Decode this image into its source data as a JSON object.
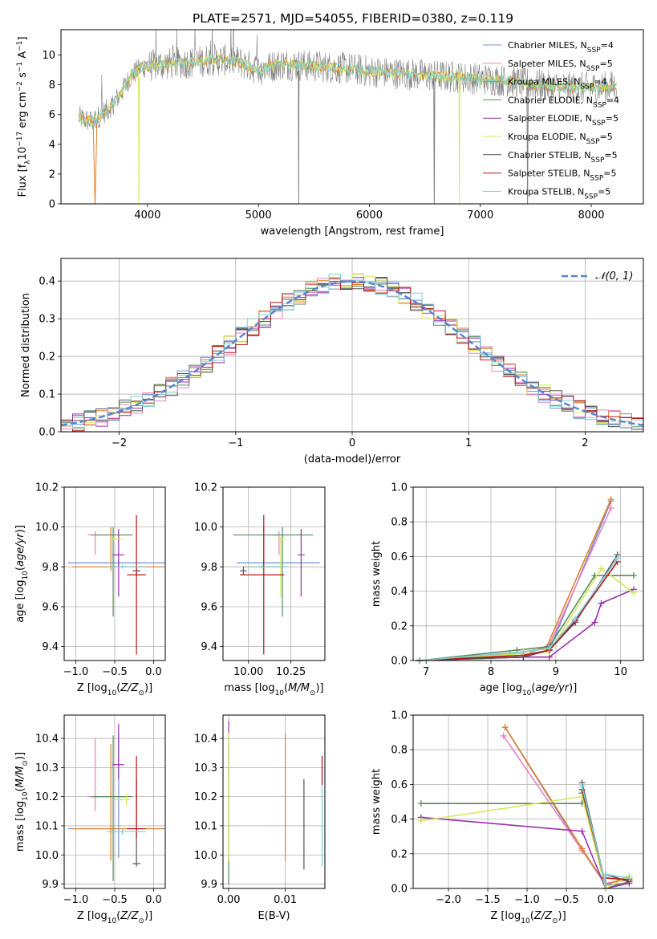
{
  "figure_title": "PLATE=2571, MJD=54055, FIBERID=0380, z=0.119",
  "colors": {
    "series": [
      "#6f8fd8",
      "#e882c2",
      "#e0802a",
      "#5a8a5a",
      "#9a2fb0",
      "#d6e85a",
      "#555555",
      "#b81414",
      "#7ad0d8"
    ],
    "data": "#808080",
    "normal": "#5b84d6",
    "grid": "#b0b0b0"
  },
  "chart_data": [
    {
      "id": "spectrum",
      "type": "line",
      "xlabel": "wavelength [Angstrom, rest frame]",
      "ylabel": "Flux [f_λ10^-17 erg cm^-2 s^-1 A^-1]",
      "xlim": [
        3220,
        8470
      ],
      "ylim": [
        0,
        11.7
      ],
      "xticks": [
        4000,
        5000,
        6000,
        7000,
        8000
      ],
      "yticks": [
        0,
        2,
        4,
        6,
        8,
        10
      ],
      "grid": false,
      "legend_position": "top-right",
      "legend": [
        {
          "name": "Chabrier MILES",
          "nssp": "4"
        },
        {
          "name": "Salpeter MILES",
          "nssp": "5"
        },
        {
          "name": "Kroupa MILES",
          "nssp": "4"
        },
        {
          "name": "Chabrier ELODIE",
          "nssp": "4"
        },
        {
          "name": "Salpeter ELODIE",
          "nssp": "5"
        },
        {
          "name": "Kroupa ELODIE",
          "nssp": "5"
        },
        {
          "name": "Chabrier STELIB",
          "nssp": "5"
        },
        {
          "name": "Salpeter STELIB",
          "nssp": "5"
        },
        {
          "name": "Kroupa STELIB",
          "nssp": "5"
        }
      ],
      "model_continuum": {
        "x": [
          3380,
          3500,
          3650,
          3750,
          3850,
          3950,
          4050,
          4200,
          4400,
          4600,
          4800,
          5000,
          5200,
          5400,
          5600,
          5800,
          6000,
          6200,
          6400,
          6600,
          6800,
          7000,
          7200,
          7400,
          7600,
          7800,
          8000,
          8230
        ],
        "y": [
          5.8,
          5.5,
          6.4,
          7.3,
          8.6,
          9.2,
          9.3,
          9.4,
          9.5,
          9.7,
          9.6,
          9.0,
          9.4,
          9.3,
          9.2,
          9.1,
          8.9,
          8.8,
          8.7,
          8.6,
          8.5,
          8.4,
          8.3,
          8.1,
          7.9,
          7.8,
          7.8,
          7.9
        ]
      }
    },
    {
      "id": "residuals",
      "type": "line",
      "xlabel": "(data-model)/error",
      "ylabel": "Normed distribution",
      "xlim": [
        -2.5,
        2.5
      ],
      "ylim": [
        0,
        0.46
      ],
      "xticks": [
        -2,
        -1,
        0,
        1,
        2
      ],
      "yticks": [
        0.0,
        0.1,
        0.2,
        0.3,
        0.4
      ],
      "grid": true,
      "legend_position": "top-right",
      "normal_label": "N(0,1)",
      "normal": {
        "mean": 0,
        "sigma": 1
      }
    },
    {
      "id": "age-vs-Z",
      "type": "scatter",
      "xlabel": "Z [log10(Z/Z⊙)]",
      "ylabel": "age [log10(age/yr)]",
      "xlim": [
        -1.15,
        0.15
      ],
      "ylim": [
        9.33,
        10.2
      ],
      "xticks": [
        -1.0,
        -0.5,
        0.0
      ],
      "yticks": [
        9.4,
        9.6,
        9.8,
        10.0,
        10.2
      ],
      "grid": true,
      "points": [
        {
          "x": -0.45,
          "xerr": [
            0.65,
            0.68
          ],
          "y": 9.82,
          "yerr": [
            0.02,
            0.02
          ]
        },
        {
          "x": -0.75,
          "xerr": [
            0.1,
            0.4
          ],
          "y": 9.96,
          "yerr": [
            0.1,
            0.02
          ]
        },
        {
          "x": -0.55,
          "xerr": [
            0.5,
            0.68
          ],
          "y": 9.8,
          "yerr": [
            0.02,
            0.2
          ]
        },
        {
          "x": -0.52,
          "xerr": [
            0.28,
            0.25
          ],
          "y": 9.96,
          "yerr": [
            0.41,
            0.04
          ]
        },
        {
          "x": -0.45,
          "xerr": [
            0.08,
            0.07
          ],
          "y": 9.86,
          "yerr": [
            0.21,
            0.13
          ]
        },
        {
          "x": -0.5,
          "xerr": [
            0.06,
            0.1
          ],
          "y": 9.94,
          "yerr": [
            0.01,
            0.01
          ]
        },
        {
          "x": -0.22,
          "xerr": [
            0.05,
            0.05
          ],
          "y": 9.78,
          "yerr": [
            0.02,
            0.02
          ]
        },
        {
          "x": -0.22,
          "xerr": [
            0.12,
            0.12
          ],
          "y": 9.76,
          "yerr": [
            0.4,
            0.3
          ]
        },
        {
          "x": -0.4,
          "xerr": [
            0.2,
            0.3
          ],
          "y": 9.8,
          "yerr": [
            0.01,
            0.01
          ]
        }
      ]
    },
    {
      "id": "age-vs-mass",
      "type": "scatter",
      "xlabel": "mass [log10(M/M⊙)]",
      "ylabel": "",
      "xlim": [
        9.85,
        10.45
      ],
      "ylim": [
        9.33,
        10.2
      ],
      "xticks": [
        10.0,
        10.25
      ],
      "yticks": [
        9.4,
        9.6,
        9.8,
        10.0,
        10.2
      ],
      "grid": true,
      "points": [
        {
          "x": 10.09,
          "xerr": [
            0.16,
            0.33
          ],
          "y": 9.82,
          "yerr": [
            0.02,
            0.02
          ]
        },
        {
          "x": 10.18,
          "xerr": [
            0.03,
            0.03
          ],
          "y": 9.96,
          "yerr": [
            0.1,
            0.02
          ]
        },
        {
          "x": 10.09,
          "xerr": [
            0.12,
            0.12
          ],
          "y": 9.8,
          "yerr": [
            0.02,
            0.2
          ]
        },
        {
          "x": 10.2,
          "xerr": [
            0.29,
            0.18
          ],
          "y": 9.96,
          "yerr": [
            0.41,
            0.04
          ]
        },
        {
          "x": 10.31,
          "xerr": [
            0.02,
            0.02
          ],
          "y": 9.86,
          "yerr": [
            0.21,
            0.13
          ]
        },
        {
          "x": 10.19,
          "xerr": [
            0.02,
            0.02
          ],
          "y": 9.94,
          "yerr": [
            0.29,
            0.01
          ]
        },
        {
          "x": 9.97,
          "xerr": [
            0.02,
            0.02
          ],
          "y": 9.78,
          "yerr": [
            0.02,
            0.02
          ]
        },
        {
          "x": 10.09,
          "xerr": [
            0.14,
            0.12
          ],
          "y": 9.76,
          "yerr": [
            0.4,
            0.3
          ]
        },
        {
          "x": 10.08,
          "xerr": [
            0.1,
            0.15
          ],
          "y": 9.8,
          "yerr": [
            0.01,
            0.01
          ]
        }
      ]
    },
    {
      "id": "mass-weight-vs-age",
      "type": "line",
      "xlabel": "age [log10(age/yr)]",
      "ylabel": "mass weight",
      "xlim": [
        6.8,
        10.35
      ],
      "ylim": [
        0,
        1.0
      ],
      "xticks": [
        7,
        8,
        9,
        10
      ],
      "yticks": [
        0.0,
        0.2,
        0.4,
        0.6,
        0.8,
        1.0
      ],
      "grid": true,
      "series": [
        {
          "x": [
            6.9,
            8.5,
            8.9,
            9.85
          ],
          "y": [
            0.0,
            0.02,
            0.06,
            0.92
          ]
        },
        {
          "x": [
            6.9,
            8.5,
            8.9,
            9.85
          ],
          "y": [
            0.0,
            0.03,
            0.09,
            0.88
          ]
        },
        {
          "x": [
            6.9,
            8.3,
            8.85,
            9.85
          ],
          "y": [
            0.0,
            0.04,
            0.07,
            0.93
          ]
        },
        {
          "x": [
            6.9,
            8.4,
            8.9,
            9.6,
            10.2
          ],
          "y": [
            0.0,
            0.06,
            0.08,
            0.49,
            0.49
          ]
        },
        {
          "x": [
            6.9,
            8.5,
            8.9,
            9.6,
            9.7,
            10.2
          ],
          "y": [
            0.0,
            0.02,
            0.02,
            0.22,
            0.33,
            0.41
          ]
        },
        {
          "x": [
            6.9,
            8.5,
            8.9,
            9.7,
            10.2
          ],
          "y": [
            0.0,
            0.04,
            0.05,
            0.53,
            0.39
          ]
        },
        {
          "x": [
            6.9,
            8.5,
            8.9,
            9.3,
            9.95
          ],
          "y": [
            0.0,
            0.02,
            0.06,
            0.22,
            0.61
          ]
        },
        {
          "x": [
            6.9,
            8.5,
            8.9,
            9.3,
            9.95
          ],
          "y": [
            0.0,
            0.03,
            0.06,
            0.23,
            0.57
          ]
        },
        {
          "x": [
            6.9,
            8.5,
            8.9,
            9.3,
            9.95
          ],
          "y": [
            0.0,
            0.05,
            0.07,
            0.24,
            0.59
          ]
        }
      ]
    },
    {
      "id": "mass-vs-Z",
      "type": "scatter",
      "xlabel": "Z [log10(Z/Z⊙)]",
      "ylabel": "mass [log10(M/M⊙)]",
      "xlim": [
        -1.15,
        0.15
      ],
      "ylim": [
        9.885,
        10.48
      ],
      "xticks": [
        -1.0,
        -0.5,
        0.0
      ],
      "yticks": [
        9.9,
        10.0,
        10.1,
        10.2,
        10.3,
        10.4
      ],
      "grid": true,
      "points": [
        {
          "x": -0.45,
          "xerr": [
            0.65,
            0.68
          ],
          "y": 10.09,
          "yerr": [
            0.1,
            0.33
          ]
        },
        {
          "x": -0.75,
          "xerr": [
            0.1,
            0.4
          ],
          "y": 10.2,
          "yerr": [
            0.05,
            0.2
          ]
        },
        {
          "x": -0.55,
          "xerr": [
            0.5,
            0.68
          ],
          "y": 10.09,
          "yerr": [
            0.11,
            0.29
          ]
        },
        {
          "x": -0.52,
          "xerr": [
            0.28,
            0.25
          ],
          "y": 10.2,
          "yerr": [
            0.29,
            0.21
          ]
        },
        {
          "x": -0.45,
          "xerr": [
            0.08,
            0.07
          ],
          "y": 10.31,
          "yerr": [
            0.05,
            0.14
          ]
        },
        {
          "x": -0.35,
          "xerr": [
            0.16,
            0.06
          ],
          "y": 10.19,
          "yerr": [
            0.02,
            0.02
          ]
        },
        {
          "x": -0.22,
          "xerr": [
            0.05,
            0.05
          ],
          "y": 9.97,
          "yerr": [
            0.01,
            0.29
          ]
        },
        {
          "x": -0.22,
          "xerr": [
            0.12,
            0.12
          ],
          "y": 10.09,
          "yerr": [
            0.03,
            0.25
          ]
        },
        {
          "x": -0.4,
          "xerr": [
            0.2,
            0.3
          ],
          "y": 10.08,
          "yerr": [
            0.01,
            0.01
          ]
        }
      ]
    },
    {
      "id": "mass-vs-EBV",
      "type": "scatter",
      "xlabel": "E(B-V)",
      "ylabel": "",
      "xlim": [
        -0.001,
        0.017
      ],
      "ylim": [
        9.885,
        10.48
      ],
      "xticks": [
        0.0,
        0.01
      ],
      "yticks": [
        9.9,
        10.0,
        10.1,
        10.2,
        10.3,
        10.4
      ],
      "grid": true,
      "points": [
        {
          "x": 0.0,
          "y": 10.2,
          "yerr": [
            0.22,
            0.22
          ]
        },
        {
          "x": 0.0,
          "y": 10.2,
          "yerr": [
            0.2,
            0.2
          ]
        },
        {
          "x": 0.01,
          "y": 10.2,
          "yerr": [
            0.22,
            0.22
          ]
        },
        {
          "x": 0.0,
          "y": 10.2,
          "yerr": [
            0.3,
            0.08
          ]
        },
        {
          "x": 0.0,
          "y": 10.38,
          "yerr": [
            0.1,
            0.08
          ]
        },
        {
          "x": 0.0,
          "y": 10.2,
          "yerr": [
            0.22,
            0.22
          ]
        },
        {
          "x": 0.0133,
          "y": 10.1,
          "yerr": [
            0.15,
            0.16
          ]
        },
        {
          "x": 0.0165,
          "y": 10.29,
          "yerr": [
            0.05,
            0.05
          ]
        },
        {
          "x": 0.0165,
          "y": 10.1,
          "yerr": [
            0.14,
            0.14
          ]
        }
      ]
    },
    {
      "id": "mass-weight-vs-Z",
      "type": "line",
      "xlabel": "Z [log10(Z/Z⊙)]",
      "ylabel": "mass weight",
      "xlim": [
        -2.45,
        0.48
      ],
      "ylim": [
        0,
        1.0
      ],
      "xticks": [
        -2.0,
        -1.5,
        -1.0,
        -0.5,
        0.0
      ],
      "yticks": [
        0.0,
        0.2,
        0.4,
        0.6,
        0.8,
        1.0
      ],
      "grid": true,
      "series": [
        {
          "x": [
            -1.28,
            -0.3,
            0.0,
            0.3
          ],
          "y": [
            0.93,
            0.22,
            0.02,
            0.03
          ]
        },
        {
          "x": [
            -1.3,
            -0.3,
            0.0,
            0.3
          ],
          "y": [
            0.88,
            0.22,
            0.03,
            0.05
          ]
        },
        {
          "x": [
            -1.28,
            -0.3,
            0.0,
            0.3
          ],
          "y": [
            0.93,
            0.23,
            0.02,
            0.07
          ]
        },
        {
          "x": [
            -2.35,
            -0.3,
            -0.3,
            0.0,
            0.3
          ],
          "y": [
            0.49,
            0.49,
            0.55,
            0.0,
            0.04
          ]
        },
        {
          "x": [
            -2.35,
            -0.3,
            0.0,
            0.3
          ],
          "y": [
            0.41,
            0.33,
            0.0,
            0.03
          ]
        },
        {
          "x": [
            -2.35,
            -0.3,
            0.0,
            0.3
          ],
          "y": [
            0.39,
            0.53,
            0.0,
            0.07
          ]
        },
        {
          "x": [
            -0.3,
            0.0,
            0.0,
            0.3
          ],
          "y": [
            0.61,
            0.02,
            0.08,
            0.04
          ]
        },
        {
          "x": [
            -0.3,
            0.0,
            0.0,
            0.3
          ],
          "y": [
            0.57,
            0.02,
            0.06,
            0.05
          ]
        },
        {
          "x": [
            -0.3,
            0.0,
            0.0,
            0.3
          ],
          "y": [
            0.59,
            0.02,
            0.08,
            0.06
          ]
        }
      ]
    }
  ]
}
